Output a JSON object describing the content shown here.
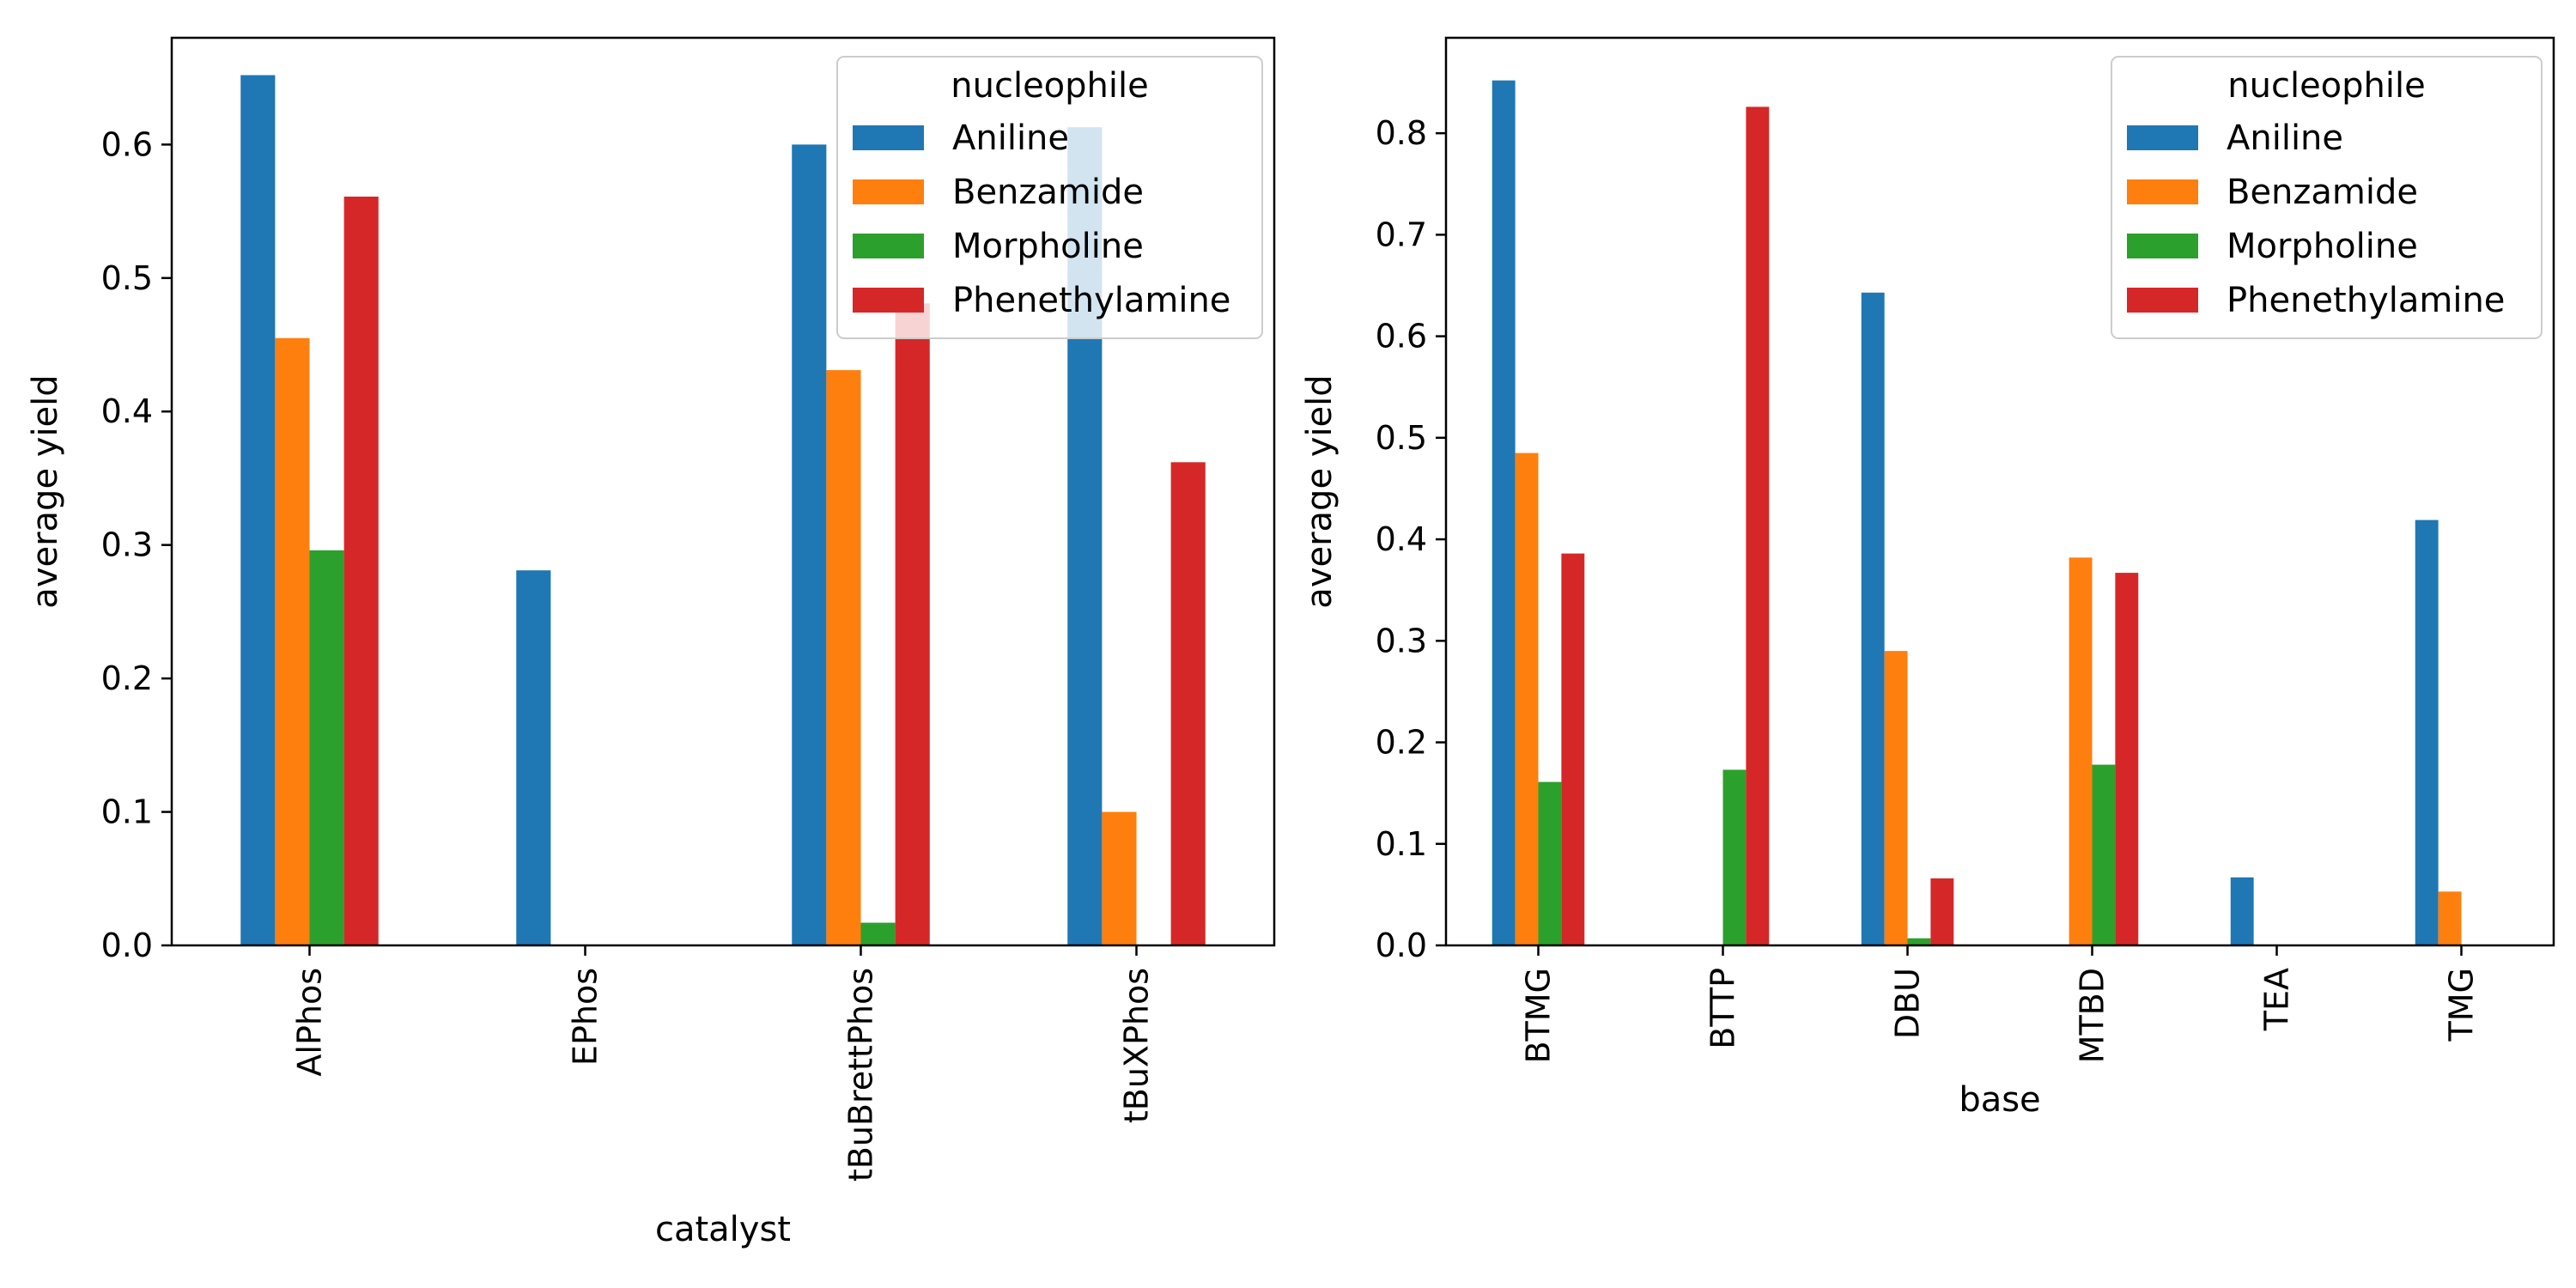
{
  "chart_data": [
    {
      "type": "bar",
      "xlabel": "catalyst",
      "ylabel": "average yield",
      "categories": [
        "AlPhos",
        "EPhos",
        "tBuBrettPhos",
        "tBuXPhos"
      ],
      "ylim": [
        0,
        0.68
      ],
      "yticks": [
        0.0,
        0.1,
        0.2,
        0.3,
        0.4,
        0.5,
        0.6
      ],
      "ytick_labels": [
        "0.0",
        "0.1",
        "0.2",
        "0.3",
        "0.4",
        "0.5",
        "0.6"
      ],
      "grid": false,
      "legend": {
        "title": "nucleophile",
        "placement": "upper right"
      },
      "series": [
        {
          "name": "Aniline",
          "color": "#1f77b4",
          "values": [
            0.652,
            0.281,
            0.6,
            0.613
          ]
        },
        {
          "name": "Benzamide",
          "color": "#ff7f0e",
          "values": [
            0.455,
            0,
            0.431,
            0.1
          ]
        },
        {
          "name": "Morpholine",
          "color": "#2ca02c",
          "values": [
            0.296,
            0,
            0.017,
            0
          ]
        },
        {
          "name": "Phenethylamine",
          "color": "#d62728",
          "values": [
            0.561,
            0,
            0.481,
            0.362
          ]
        }
      ]
    },
    {
      "type": "bar",
      "xlabel": "base",
      "ylabel": "average yield",
      "categories": [
        "BTMG",
        "BTTP",
        "DBU",
        "MTBD",
        "TEA",
        "TMG"
      ],
      "ylim": [
        0,
        0.894
      ],
      "yticks": [
        0.0,
        0.1,
        0.2,
        0.3,
        0.4,
        0.5,
        0.6,
        0.7,
        0.8
      ],
      "ytick_labels": [
        "0.0",
        "0.1",
        "0.2",
        "0.3",
        "0.4",
        "0.5",
        "0.6",
        "0.7",
        "0.8"
      ],
      "grid": false,
      "legend": {
        "title": "nucleophile",
        "placement": "upper right"
      },
      "series": [
        {
          "name": "Aniline",
          "color": "#1f77b4",
          "values": [
            0.852,
            0,
            0.643,
            0,
            0.067,
            0.419
          ]
        },
        {
          "name": "Benzamide",
          "color": "#ff7f0e",
          "values": [
            0.485,
            0,
            0.29,
            0.382,
            0,
            0.053
          ]
        },
        {
          "name": "Morpholine",
          "color": "#2ca02c",
          "values": [
            0.161,
            0.173,
            0.007,
            0.178,
            0,
            0
          ]
        },
        {
          "name": "Phenethylamine",
          "color": "#d62728",
          "values": [
            0.386,
            0.826,
            0.066,
            0.367,
            0,
            0
          ]
        }
      ]
    }
  ]
}
